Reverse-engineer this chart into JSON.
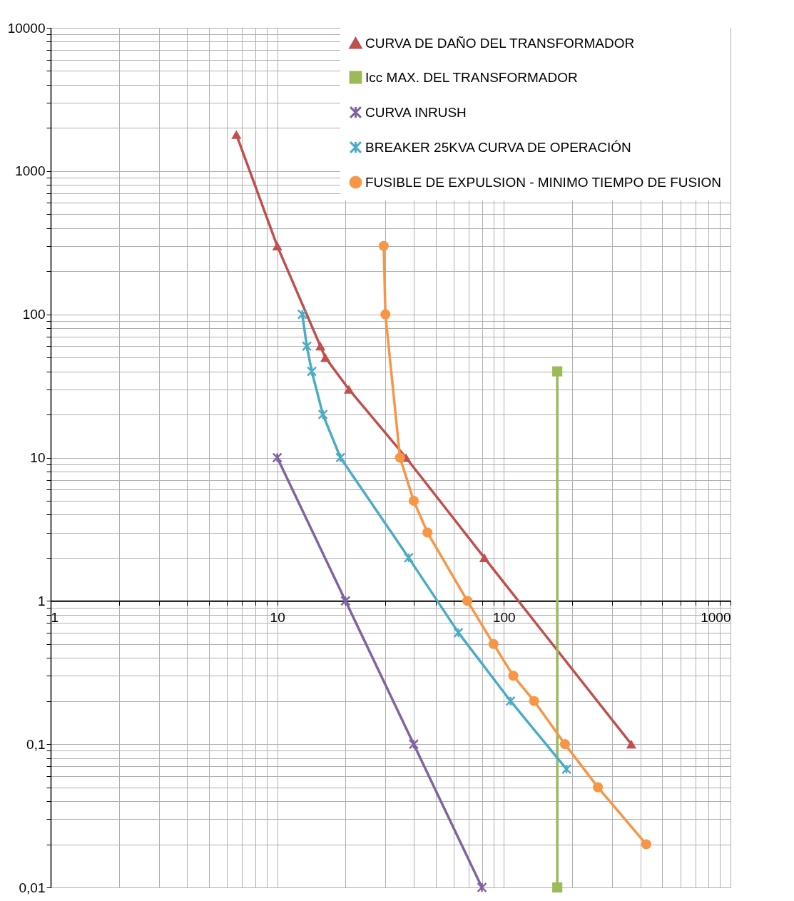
{
  "chart_data": {
    "type": "line",
    "log": "xy",
    "grid": true,
    "legend": "top right",
    "xlim": [
      1,
      1000
    ],
    "xticks": [
      1,
      10,
      100,
      1000
    ],
    "ylim": [
      0.01,
      10000
    ],
    "yticks": [
      {
        "value": 0.01,
        "label": "0,01"
      },
      {
        "value": 0.1,
        "label": "0,1"
      },
      1,
      10,
      100,
      1000,
      10000
    ],
    "series": [
      {
        "name": "CURVA DE DAÑO DEL TRANSFORMADOR",
        "color": "#c0504d",
        "marker": "triangle",
        "x": [
          6.6,
          10,
          15.5,
          16.3,
          20.7,
          37,
          82,
          365
        ],
        "values": [
          1800,
          300,
          60,
          50,
          30,
          10,
          2,
          0.1
        ]
      },
      {
        "name": "Icc MAX. DEL TRANSFORMADOR",
        "color": "#9bbb59",
        "marker": "square",
        "x": [
          172,
          172
        ],
        "values": [
          40,
          0.01
        ]
      },
      {
        "name": "CURVA INRUSH",
        "color": "#8064a2",
        "marker": "cross",
        "x": [
          10,
          20,
          40,
          80
        ],
        "values": [
          10,
          1,
          0.1,
          0.01
        ]
      },
      {
        "name": "BREAKER 25KVA CURVA DE OPERACIÓN",
        "color": "#4bacc6",
        "marker": "cross",
        "x": [
          12.9,
          13.5,
          14.2,
          15.9,
          19,
          38,
          63,
          107,
          189
        ],
        "values": [
          100,
          60,
          40,
          20,
          10,
          2,
          0.6,
          0.2,
          0.067
        ]
      },
      {
        "name": "FUSIBLE DE EXPULSION - MINIMO TIEMPO DE FUSION",
        "color": "#f79646",
        "marker": "circle",
        "x": [
          29.5,
          30,
          34.8,
          40,
          46,
          69,
          90,
          110,
          136,
          186,
          260,
          425
        ],
        "values": [
          300,
          100,
          10,
          5,
          3,
          1,
          0.5,
          0.3,
          0.2,
          0.1,
          0.05,
          0.02
        ]
      }
    ]
  }
}
